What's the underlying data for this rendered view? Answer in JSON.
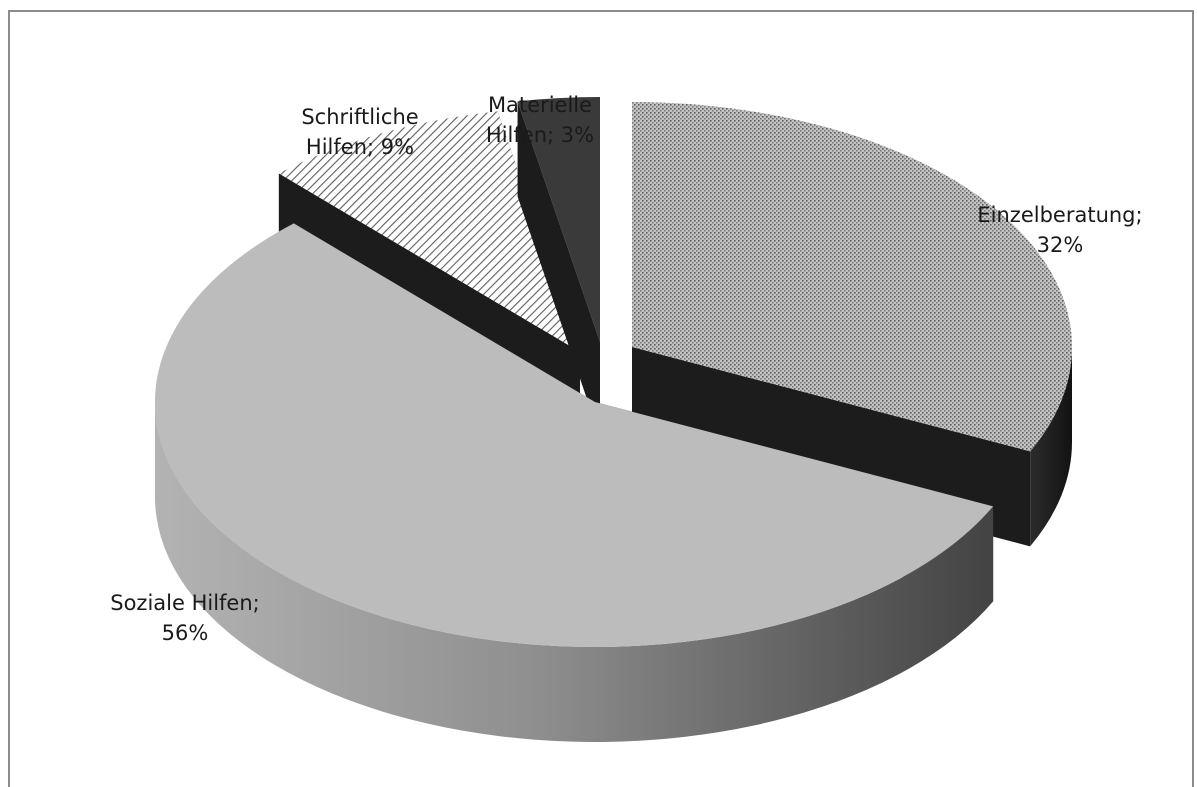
{
  "chart_data": {
    "type": "pie",
    "variant": "3d-exploded",
    "title": "",
    "legend": "none",
    "slices": [
      {
        "name": "Einzelberatung",
        "value": 32,
        "label_lines": [
          "Einzelberatung;",
          "32%"
        ],
        "fill": "dots",
        "color": "#a9a9a9"
      },
      {
        "name": "Soziale Hilfen",
        "value": 56,
        "label_lines": [
          "Soziale Hilfen;",
          "56%"
        ],
        "fill": "solid",
        "color": "#bcbcbc"
      },
      {
        "name": "Schriftliche Hilfen",
        "value": 9,
        "label_lines": [
          "Schriftliche",
          "Hilfen; 9%"
        ],
        "fill": "hatch",
        "color": "#ffffff"
      },
      {
        "name": "Materielle Hilfen",
        "value": 3,
        "label_lines": [
          "Materielle",
          "Hilfen; 3%"
        ],
        "fill": "solid",
        "color": "#3a3a3a"
      }
    ]
  }
}
